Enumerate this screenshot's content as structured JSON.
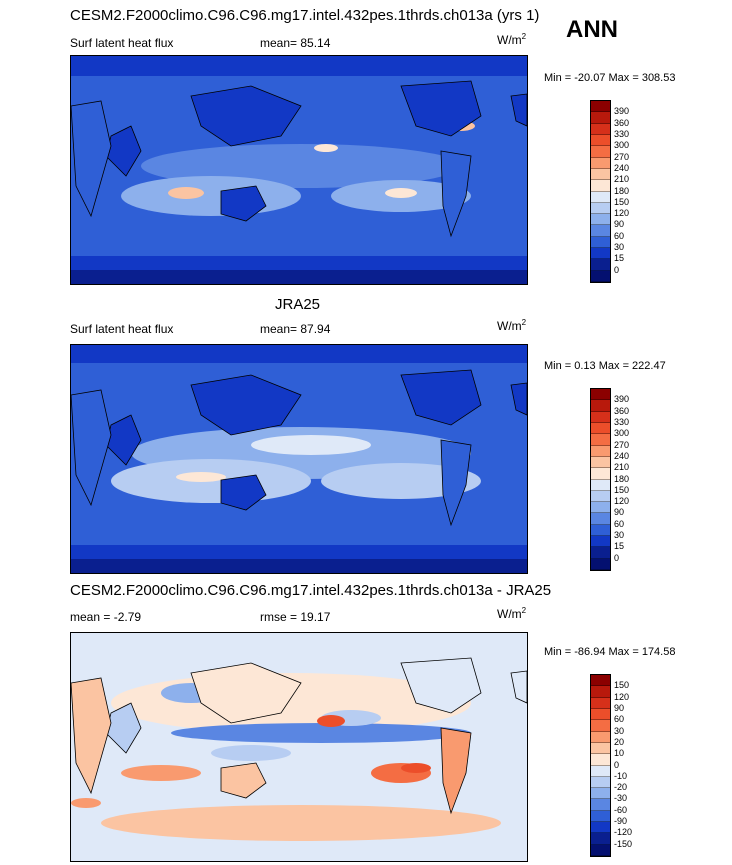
{
  "header": {
    "title1": "CESM2.F2000climo.C96.C96.mg17.intel.432pes.1thrds.ch013a (yrs 1)",
    "season": "ANN"
  },
  "panels": [
    {
      "variable": "Surf latent heat flux",
      "stat_label": "mean=",
      "stat_value": "85.14",
      "units": "W/m",
      "units_sup": "2",
      "minmax": "Min = -20.07 Max = 308.53",
      "cbar_labels": [
        "390",
        "360",
        "330",
        "300",
        "270",
        "240",
        "210",
        "180",
        "150",
        "120",
        "90",
        "60",
        "30",
        "15",
        "0"
      ],
      "cbar_colors": [
        "#8b0000",
        "#b8190c",
        "#d6301a",
        "#ec4e2a",
        "#f46d43",
        "#f99a6f",
        "#fbc4a2",
        "#fde7d6",
        "#dfe9f8",
        "#b7cdf2",
        "#8db0ec",
        "#5a86e2",
        "#2f5fd6",
        "#1238c5",
        "#0a1f8f",
        "#041070"
      ]
    },
    {
      "title": "JRA25",
      "variable": "Surf latent heat flux",
      "stat_label": "mean=",
      "stat_value": "87.94",
      "units": "W/m",
      "units_sup": "2",
      "minmax": "Min =   0.13 Max = 222.47",
      "cbar_labels": [
        "390",
        "360",
        "330",
        "300",
        "270",
        "240",
        "210",
        "180",
        "150",
        "120",
        "90",
        "60",
        "30",
        "15",
        "0"
      ],
      "cbar_colors": [
        "#8b0000",
        "#b8190c",
        "#d6301a",
        "#ec4e2a",
        "#f46d43",
        "#f99a6f",
        "#fbc4a2",
        "#fde7d6",
        "#dfe9f8",
        "#b7cdf2",
        "#8db0ec",
        "#5a86e2",
        "#2f5fd6",
        "#1238c5",
        "#0a1f8f",
        "#041070"
      ]
    },
    {
      "title": "CESM2.F2000climo.C96.C96.mg17.intel.432pes.1thrds.ch013a - JRA25",
      "stat_label": "mean =",
      "stat_value": "-2.79",
      "stat2_label": "rmse =",
      "stat2_value": "19.17",
      "units": "W/m",
      "units_sup": "2",
      "minmax": "Min = -86.94 Max = 174.58",
      "cbar_labels": [
        "150",
        "120",
        "90",
        "60",
        "30",
        "20",
        "10",
        "0",
        "-10",
        "-20",
        "-30",
        "-60",
        "-90",
        "-120",
        "-150"
      ],
      "cbar_colors": [
        "#8b0000",
        "#b8190c",
        "#d6301a",
        "#ec4e2a",
        "#f46d43",
        "#f99a6f",
        "#fbc4a2",
        "#fde7d6",
        "#dfe9f8",
        "#b7cdf2",
        "#8db0ec",
        "#5a86e2",
        "#2f5fd6",
        "#1238c5",
        "#0a1f8f",
        "#041070"
      ]
    }
  ]
}
